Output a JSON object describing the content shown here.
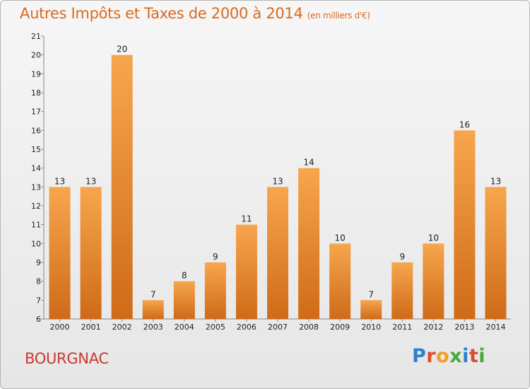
{
  "header": {
    "title": "Autres Impôts et Taxes de 2000 à 2014",
    "unit": "(en milliers d'€)"
  },
  "footer": {
    "town": "BOURGNAC",
    "logo_letters": [
      {
        "ch": "P",
        "color": "#2f7fd0"
      },
      {
        "ch": "r",
        "color": "#e04a2a"
      },
      {
        "ch": "o",
        "color": "#f0a020"
      },
      {
        "ch": "x",
        "color": "#4aa83a"
      },
      {
        "ch": "i",
        "color": "#2f7fd0"
      },
      {
        "ch": "t",
        "color": "#e04a2a"
      },
      {
        "ch": "i",
        "color": "#4aa83a"
      }
    ]
  },
  "chart_data": {
    "type": "bar",
    "title": "Autres Impôts et Taxes de 2000 à 2014",
    "subtitle": "(en milliers d'€)",
    "categories": [
      "2000",
      "2001",
      "2002",
      "2003",
      "2004",
      "2005",
      "2006",
      "2007",
      "2008",
      "2009",
      "2010",
      "2011",
      "2012",
      "2013",
      "2014"
    ],
    "values": [
      13,
      13,
      20,
      7,
      8,
      9,
      11,
      13,
      14,
      10,
      7,
      9,
      10,
      16,
      13
    ],
    "ylim": [
      6,
      21
    ],
    "yticks": [
      6,
      7,
      8,
      9,
      10,
      11,
      12,
      13,
      14,
      15,
      16,
      17,
      18,
      19,
      20,
      21
    ],
    "grid": false,
    "bar_color_top": "#f7a64e",
    "bar_color_bottom": "#cf6a18"
  }
}
